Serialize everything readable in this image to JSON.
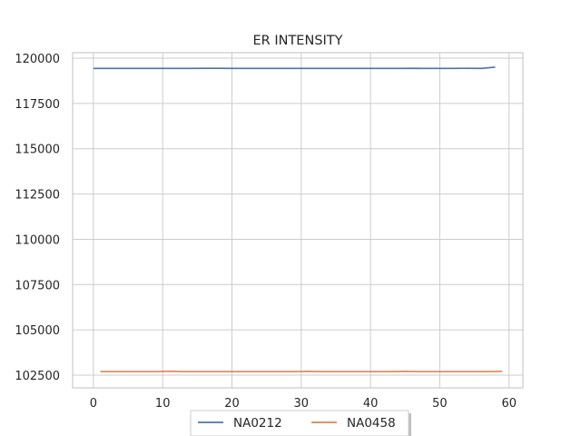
{
  "chart_data": {
    "type": "line",
    "title": "ER INTENSITY",
    "xlabel": "",
    "ylabel": "",
    "xlim": [
      -3,
      62
    ],
    "ylim": [
      101800,
      120300
    ],
    "xticks": [
      0,
      10,
      20,
      30,
      40,
      50,
      60
    ],
    "yticks": [
      102500,
      105000,
      107500,
      110000,
      112500,
      115000,
      117500,
      120000
    ],
    "grid": true,
    "legend_position": "bottom-center",
    "series": [
      {
        "name": "NA0212",
        "color": "#4c72b0",
        "x": [
          0,
          2,
          4,
          6,
          8,
          10,
          12,
          14,
          16,
          18,
          20,
          22,
          24,
          26,
          28,
          30,
          32,
          34,
          36,
          38,
          40,
          42,
          44,
          46,
          48,
          50,
          52,
          54,
          56,
          58
        ],
        "y": [
          119430,
          119430,
          119430,
          119430,
          119430,
          119430,
          119430,
          119430,
          119440,
          119440,
          119430,
          119430,
          119430,
          119430,
          119430,
          119430,
          119430,
          119430,
          119430,
          119430,
          119430,
          119430,
          119430,
          119440,
          119430,
          119430,
          119430,
          119440,
          119430,
          119500
        ]
      },
      {
        "name": "NA0458",
        "color": "#dd8452",
        "x": [
          1,
          3,
          5,
          7,
          9,
          11,
          13,
          15,
          17,
          19,
          21,
          23,
          25,
          27,
          29,
          31,
          33,
          35,
          37,
          39,
          41,
          43,
          45,
          47,
          49,
          51,
          53,
          55,
          57,
          59
        ],
        "y": [
          102700,
          102700,
          102700,
          102700,
          102700,
          102720,
          102700,
          102700,
          102700,
          102700,
          102700,
          102700,
          102700,
          102700,
          102700,
          102710,
          102700,
          102700,
          102700,
          102700,
          102700,
          102700,
          102710,
          102700,
          102700,
          102700,
          102700,
          102700,
          102700,
          102710
        ]
      }
    ]
  }
}
